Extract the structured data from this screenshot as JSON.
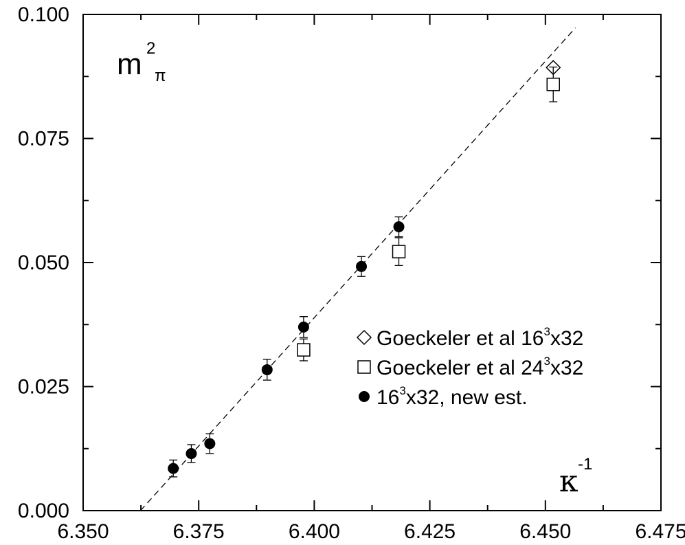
{
  "chart_data": {
    "type": "scatter",
    "xlim": [
      6.35,
      6.475
    ],
    "ylim": [
      0.0,
      0.1
    ],
    "x_ticks": [
      "6.350",
      "6.375",
      "6.400",
      "6.425",
      "6.450",
      "6.475"
    ],
    "y_ticks": [
      "0.000",
      "0.025",
      "0.050",
      "0.075",
      "0.100"
    ],
    "ylabel": {
      "base": "m",
      "sup": "2",
      "sub": "π"
    },
    "xlabel": {
      "base": "κ",
      "sup": "-1"
    },
    "legend_position": "center-right",
    "grid": false,
    "series": [
      {
        "name": "Goeckeler et al 16³x32",
        "legend": {
          "pre": "Goeckeler et al 16",
          "sup": "3",
          "post": "x32"
        },
        "marker": "diamond-open",
        "points": [
          {
            "x": 6.4517,
            "y": 0.0893,
            "err": 0.0
          }
        ]
      },
      {
        "name": "Goeckeler et al 24³x32",
        "legend": {
          "pre": "Goeckeler et al 24",
          "sup": "3",
          "post": "x32"
        },
        "marker": "square-open",
        "points": [
          {
            "x": 6.3977,
            "y": 0.0324,
            "err": 0.0022
          },
          {
            "x": 6.4183,
            "y": 0.0522,
            "err": 0.0028
          },
          {
            "x": 6.4517,
            "y": 0.0859,
            "err": 0.0035
          }
        ]
      },
      {
        "name": "16³x32, new est.",
        "legend": {
          "pre": "16",
          "sup": "3",
          "post": "x32, new est."
        },
        "marker": "circle-filled",
        "points": [
          {
            "x": 6.3695,
            "y": 0.0085,
            "err": 0.0017
          },
          {
            "x": 6.3734,
            "y": 0.0115,
            "err": 0.0018
          },
          {
            "x": 6.3774,
            "y": 0.0135,
            "err": 0.002
          },
          {
            "x": 6.3898,
            "y": 0.0284,
            "err": 0.0021
          },
          {
            "x": 6.3977,
            "y": 0.037,
            "err": 0.0021
          },
          {
            "x": 6.4102,
            "y": 0.0492,
            "err": 0.002
          },
          {
            "x": 6.4183,
            "y": 0.0572,
            "err": 0.002
          }
        ]
      }
    ],
    "fit_line": {
      "style": "dashed",
      "points": [
        [
          6.3624,
          0.0
        ],
        [
          6.4565,
          0.0973
        ]
      ]
    }
  }
}
